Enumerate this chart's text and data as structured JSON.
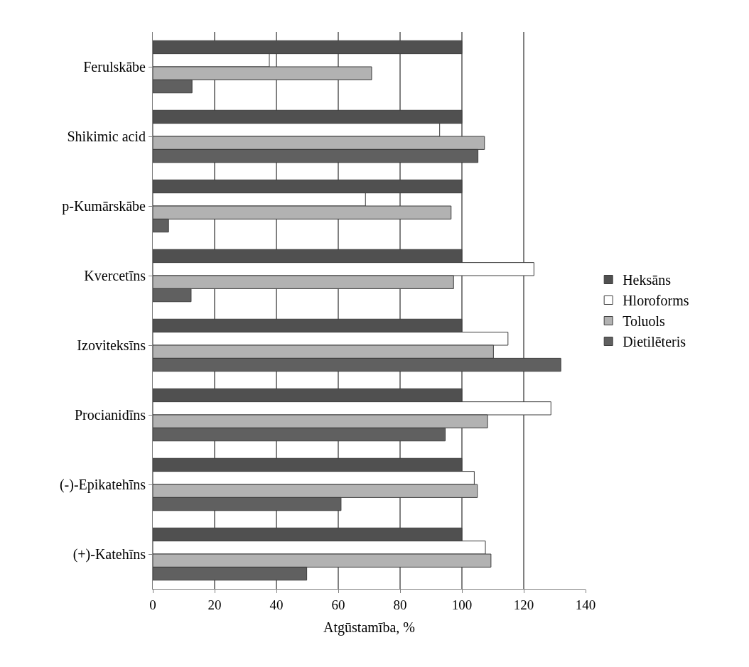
{
  "chart_data": {
    "type": "bar",
    "orientation": "horizontal",
    "xlabel": "Atgūstamība, %",
    "categories": [
      "Ferulskābe",
      "Shikimic acid",
      "p-Kumārskābe",
      "Kvercetīns",
      "Izoviteksīns",
      "Procianidīns",
      "(-)-Epikatehīns",
      "(+)-Katehīns"
    ],
    "series": [
      {
        "name": "Heksāns",
        "color": "#505050",
        "values": [
          100,
          100,
          100,
          100,
          100,
          100,
          100,
          100
        ]
      },
      {
        "name": "Hloroforms",
        "color": "#ffffff",
        "values": [
          37.7,
          92.8,
          68.8,
          123.3,
          114.9,
          128.8,
          104.0,
          107.6
        ]
      },
      {
        "name": "Toluols",
        "color": "#b2b2b2",
        "values": [
          70.8,
          107.3,
          96.5,
          97.3,
          110.2,
          108.3,
          105.0,
          109.4
        ]
      },
      {
        "name": "Dietilēteris",
        "color": "#606060",
        "values": [
          12.7,
          105.2,
          5.1,
          12.4,
          132.0,
          94.6,
          60.9,
          49.8
        ]
      }
    ],
    "xlim": [
      0,
      140
    ],
    "xticks": [
      0,
      20,
      40,
      60,
      80,
      100,
      120,
      140
    ],
    "grid": "x",
    "legend": "right"
  }
}
